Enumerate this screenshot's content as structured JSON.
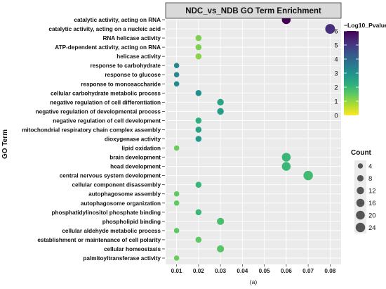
{
  "chart_data": {
    "type": "scatter",
    "title": "NDC_vs_NDB GO Term Enrichment",
    "xlabel": "",
    "ylabel": "GO Term",
    "xlim": [
      0.005,
      0.085
    ],
    "x_ticks": [
      "0.01",
      "0.02",
      "0.03",
      "0.04",
      "0.05",
      "0.06",
      "0.07",
      "0.08"
    ],
    "x_tick_values": [
      0.01,
      0.02,
      0.03,
      0.04,
      0.05,
      0.06,
      0.07,
      0.08
    ],
    "grid": true,
    "caption": "(a)",
    "color_legend": {
      "title": "−Log10_Pvalue",
      "range": [
        0,
        6
      ],
      "ticks": [
        "0",
        "1",
        "2",
        "3",
        "4",
        "5",
        "6"
      ],
      "colormap": "viridis",
      "placement": "right"
    },
    "size_legend": {
      "title": "Count",
      "entries": [
        "4",
        "8",
        "12",
        "16",
        "20",
        "24"
      ],
      "placement": "right"
    },
    "points": [
      {
        "term": "catalytic activity, acting on RNA",
        "x": 0.06,
        "neg_log10_p": 6.0,
        "count": 9
      },
      {
        "term": "catalytic activity, acting on a nucleic acid",
        "x": 0.08,
        "neg_log10_p": 5.2,
        "count": 12
      },
      {
        "term": "RNA helicase activity",
        "x": 0.02,
        "neg_log10_p": 1.2,
        "count": 3
      },
      {
        "term": "ATP-dependent activity, acting on RNA",
        "x": 0.02,
        "neg_log10_p": 1.2,
        "count": 3
      },
      {
        "term": "helicase activity",
        "x": 0.02,
        "neg_log10_p": 1.1,
        "count": 3
      },
      {
        "term": "response to carbohydrate",
        "x": 0.01,
        "neg_log10_p": 3.2,
        "count": 2
      },
      {
        "term": "response to glucose",
        "x": 0.01,
        "neg_log10_p": 3.2,
        "count": 2
      },
      {
        "term": "response to monosaccharide",
        "x": 0.01,
        "neg_log10_p": 3.2,
        "count": 2
      },
      {
        "term": "cellular carbohydrate metabolic process",
        "x": 0.02,
        "neg_log10_p": 3.0,
        "count": 3
      },
      {
        "term": "negative regulation of cell differentiation",
        "x": 0.03,
        "neg_log10_p": 2.5,
        "count": 4
      },
      {
        "term": "negative regulation of developmental process",
        "x": 0.03,
        "neg_log10_p": 2.7,
        "count": 4
      },
      {
        "term": "negative regulation of cell development",
        "x": 0.02,
        "neg_log10_p": 2.2,
        "count": 3
      },
      {
        "term": "mitochondrial respiratory chain complex assembly",
        "x": 0.02,
        "neg_log10_p": 2.5,
        "count": 3
      },
      {
        "term": "dioxygenase activity",
        "x": 0.02,
        "neg_log10_p": 2.8,
        "count": 3
      },
      {
        "term": "lipid oxidation",
        "x": 0.01,
        "neg_log10_p": 1.4,
        "count": 2
      },
      {
        "term": "brain development",
        "x": 0.06,
        "neg_log10_p": 2.0,
        "count": 9
      },
      {
        "term": "head development",
        "x": 0.06,
        "neg_log10_p": 2.0,
        "count": 9
      },
      {
        "term": "central nervous system development",
        "x": 0.07,
        "neg_log10_p": 1.9,
        "count": 11
      },
      {
        "term": "cellular component disassembly",
        "x": 0.02,
        "neg_log10_p": 2.0,
        "count": 3
      },
      {
        "term": "autophagosome assembly",
        "x": 0.01,
        "neg_log10_p": 1.5,
        "count": 2
      },
      {
        "term": "autophagosome organization",
        "x": 0.01,
        "neg_log10_p": 1.5,
        "count": 2
      },
      {
        "term": "phosphatidylinositol phosphate binding",
        "x": 0.02,
        "neg_log10_p": 2.0,
        "count": 3
      },
      {
        "term": "phospholipid binding",
        "x": 0.03,
        "neg_log10_p": 1.8,
        "count": 5
      },
      {
        "term": "cellular aldehyde metabolic process",
        "x": 0.01,
        "neg_log10_p": 1.5,
        "count": 2
      },
      {
        "term": "establishment or maintenance of cell polarity",
        "x": 0.02,
        "neg_log10_p": 1.5,
        "count": 3
      },
      {
        "term": "cellular homeostasis",
        "x": 0.03,
        "neg_log10_p": 1.6,
        "count": 5
      },
      {
        "term": "palmitoyltransferase activity",
        "x": 0.01,
        "neg_log10_p": 1.4,
        "count": 2
      }
    ]
  }
}
